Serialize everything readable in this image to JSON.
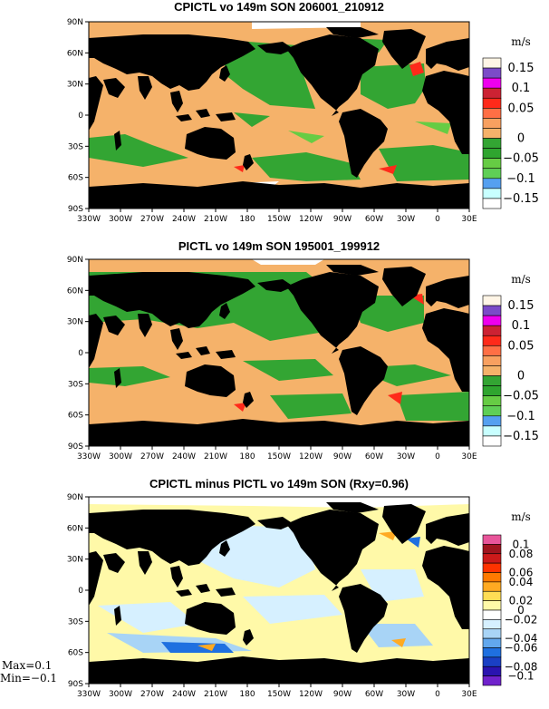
{
  "panels": [
    {
      "title": "CPICTL vo 149m SON 206001_210912",
      "unit": "m/s",
      "colorbar": {
        "labels": [
          "0.15",
          "0.1",
          "0.05",
          "0",
          "−0.05",
          "−0.1",
          "−0.15"
        ],
        "colors": [
          "#fff5e6",
          "#7b4bc8",
          "#ee00ee",
          "#cc2233",
          "#ff2a1a",
          "#ff6f45",
          "#f8a060",
          "#f5b26a",
          "#33a533",
          "#2fa52f",
          "#66cc44",
          "#5fcf56",
          "#55a0f0",
          "#c8ffff",
          "#ffffff"
        ]
      }
    },
    {
      "title": "PICTL vo 149m SON 195001_199912",
      "unit": "m/s",
      "colorbar": {
        "labels": [
          "0.15",
          "0.1",
          "0.05",
          "0",
          "−0.05",
          "−0.1",
          "−0.15"
        ],
        "colors": [
          "#fff5e6",
          "#7b4bc8",
          "#ee00ee",
          "#cc2233",
          "#ff2a1a",
          "#ff6f45",
          "#f8a060",
          "#f5b26a",
          "#33a533",
          "#2fa52f",
          "#66cc44",
          "#5fcf56",
          "#55a0f0",
          "#c8ffff",
          "#ffffff"
        ]
      }
    },
    {
      "title": "CPICTL minus PICTL vo 149m SON (Rxy=0.96)",
      "unit": "m/s",
      "colorbar": {
        "labels": [
          "0.1",
          "0.08",
          "0.06",
          "0.04",
          "0.02",
          "0",
          "−0.02",
          "−0.04",
          "−0.06",
          "−0.08",
          "−0.1"
        ],
        "colors": [
          "#e8559a",
          "#a0141e",
          "#cc1a1a",
          "#ff3300",
          "#ff7a00",
          "#ffaa22",
          "#ffdd55",
          "#fff9a8",
          "#ffffff",
          "#d6f0ff",
          "#a8d4f6",
          "#62a8ee",
          "#1f70e0",
          "#1a40c4",
          "#2a14b0",
          "#7022cc"
        ]
      }
    }
  ],
  "lat_labels": [
    "90N",
    "60N",
    "30N",
    "0",
    "30S",
    "60S",
    "90S"
  ],
  "lon_labels": [
    "330W",
    "300W",
    "270W",
    "240W",
    "210W",
    "180",
    "150W",
    "120W",
    "90W",
    "60W",
    "30W",
    "0",
    "30E"
  ],
  "stats": {
    "max": "Max=0.1",
    "min": "Min=−0.1"
  }
}
